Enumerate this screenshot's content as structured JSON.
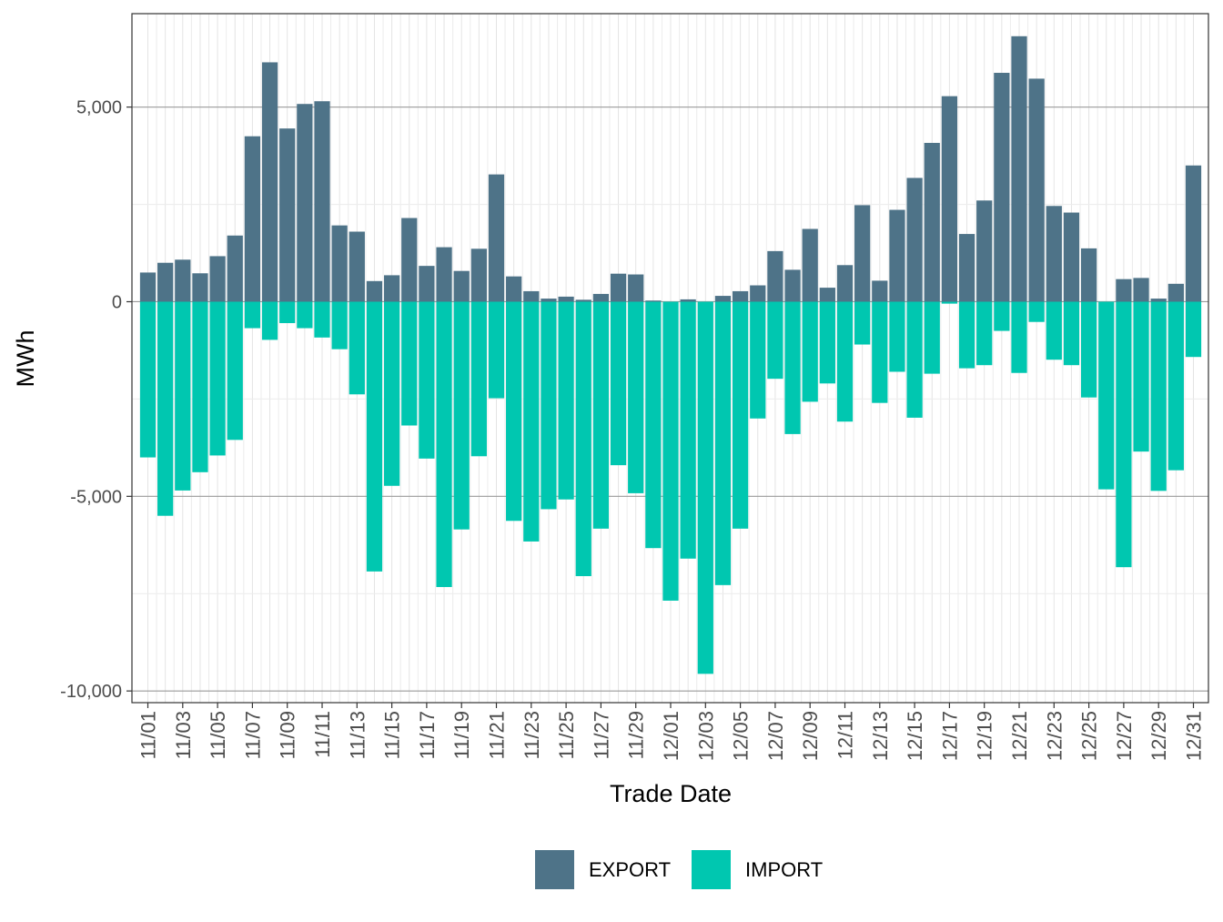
{
  "chart_data": {
    "type": "bar",
    "stacking": "diverging",
    "xlabel": "Trade Date",
    "ylabel": "MWh",
    "ylim": [
      -10300,
      7400
    ],
    "y_ticks": [
      -10000,
      -5000,
      0,
      5000
    ],
    "y_tick_labels": [
      "-10,000",
      "-5,000",
      "0",
      "5,000"
    ],
    "legend_position": "bottom",
    "colors": {
      "EXPORT": "#4e7388",
      "IMPORT": "#00c7b0"
    },
    "categories": [
      "11/01",
      "11/02",
      "11/03",
      "11/04",
      "11/05",
      "11/06",
      "11/07",
      "11/08",
      "11/09",
      "11/10",
      "11/11",
      "11/12",
      "11/13",
      "11/14",
      "11/15",
      "11/16",
      "11/17",
      "11/18",
      "11/19",
      "11/20",
      "11/21",
      "11/22",
      "11/23",
      "11/24",
      "11/25",
      "11/26",
      "11/27",
      "11/28",
      "11/29",
      "11/30",
      "12/01",
      "12/02",
      "12/03",
      "12/04",
      "12/05",
      "12/06",
      "12/07",
      "12/08",
      "12/09",
      "12/10",
      "12/11",
      "12/12",
      "12/13",
      "12/14",
      "12/15",
      "12/16",
      "12/17",
      "12/18",
      "12/19",
      "12/20",
      "12/21",
      "12/22",
      "12/23",
      "12/24",
      "12/25",
      "12/26",
      "12/27",
      "12/28",
      "12/29",
      "12/30",
      "12/31"
    ],
    "x_tick_labels": [
      "11/01",
      "11/03",
      "11/05",
      "11/07",
      "11/09",
      "11/11",
      "11/13",
      "11/15",
      "11/17",
      "11/19",
      "11/21",
      "11/23",
      "11/25",
      "11/27",
      "11/29",
      "12/01",
      "12/03",
      "12/05",
      "12/07",
      "12/09",
      "12/11",
      "12/13",
      "12/15",
      "12/17",
      "12/19",
      "12/21",
      "12/23",
      "12/25",
      "12/27",
      "12/29",
      "12/31"
    ],
    "series": [
      {
        "name": "EXPORT",
        "values": [
          750,
          1000,
          1080,
          730,
          1170,
          1700,
          4250,
          6150,
          4450,
          5080,
          5150,
          1960,
          1800,
          530,
          680,
          2150,
          920,
          1400,
          790,
          1360,
          3270,
          650,
          270,
          80,
          130,
          50,
          200,
          720,
          700,
          30,
          0,
          60,
          0,
          150,
          270,
          420,
          1300,
          820,
          1870,
          360,
          940,
          2480,
          540,
          2360,
          3180,
          4080,
          5280,
          1740,
          2600,
          5880,
          6820,
          5730,
          2460,
          2290,
          1370,
          0,
          580,
          610,
          80,
          460,
          3500
        ]
      },
      {
        "name": "IMPORT",
        "values": [
          -4000,
          -5500,
          -4850,
          -4380,
          -3950,
          -3550,
          -680,
          -980,
          -550,
          -680,
          -920,
          -1220,
          -2380,
          -6930,
          -4730,
          -3180,
          -4030,
          -7330,
          -5850,
          -3970,
          -2480,
          -5630,
          -6160,
          -5330,
          -5080,
          -7050,
          -5830,
          -4200,
          -4920,
          -6330,
          -7680,
          -6600,
          -9560,
          -7280,
          -5830,
          -3000,
          -1980,
          -3400,
          -2570,
          -2100,
          -3080,
          -1100,
          -2600,
          -1800,
          -2980,
          -1850,
          -50,
          -1710,
          -1630,
          -750,
          -1830,
          -520,
          -1490,
          -1630,
          -2460,
          -4820,
          -6820,
          -3850,
          -4860,
          -4330,
          -1420
        ]
      }
    ]
  }
}
